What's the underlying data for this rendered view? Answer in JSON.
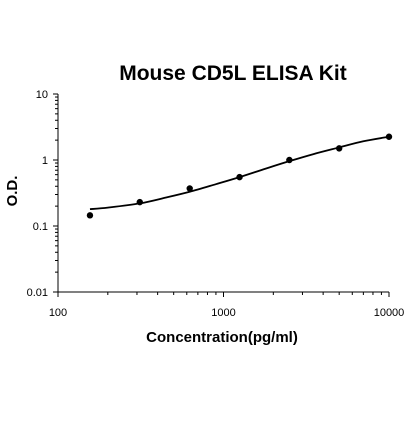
{
  "chart_data": {
    "type": "scatter",
    "title": "Mouse CD5L ELISA Kit",
    "xlabel": "Concentration(pg/ml)",
    "ylabel": "O.D.",
    "x_scale": "log",
    "y_scale": "log",
    "xlim": [
      100,
      10000
    ],
    "ylim": [
      0.01,
      10
    ],
    "x_ticks": [
      {
        "value": 100,
        "label": "100"
      },
      {
        "value": 1000,
        "label": "1000"
      },
      {
        "value": 10000,
        "label": "10000"
      }
    ],
    "y_ticks": [
      {
        "value": 0.01,
        "label": "0.01"
      },
      {
        "value": 0.1,
        "label": "0.1"
      },
      {
        "value": 1,
        "label": "1"
      },
      {
        "value": 10,
        "label": "10"
      }
    ],
    "grid": false,
    "legend": false,
    "series": [
      {
        "type": "scatter",
        "color": "#000000",
        "points": [
          {
            "x": 156,
            "y": 0.145
          },
          {
            "x": 312,
            "y": 0.23
          },
          {
            "x": 625,
            "y": 0.37
          },
          {
            "x": 1250,
            "y": 0.55
          },
          {
            "x": 2500,
            "y": 1.0
          },
          {
            "x": 5000,
            "y": 1.5
          },
          {
            "x": 10000,
            "y": 2.25
          }
        ]
      },
      {
        "type": "line",
        "color": "#000000",
        "points": [
          {
            "x": 156,
            "y": 0.18
          },
          {
            "x": 200,
            "y": 0.19
          },
          {
            "x": 312,
            "y": 0.22
          },
          {
            "x": 450,
            "y": 0.27
          },
          {
            "x": 625,
            "y": 0.33
          },
          {
            "x": 900,
            "y": 0.43
          },
          {
            "x": 1250,
            "y": 0.55
          },
          {
            "x": 1800,
            "y": 0.74
          },
          {
            "x": 2500,
            "y": 0.96
          },
          {
            "x": 3500,
            "y": 1.23
          },
          {
            "x": 5000,
            "y": 1.55
          },
          {
            "x": 7000,
            "y": 1.92
          },
          {
            "x": 10000,
            "y": 2.25
          }
        ]
      }
    ]
  }
}
